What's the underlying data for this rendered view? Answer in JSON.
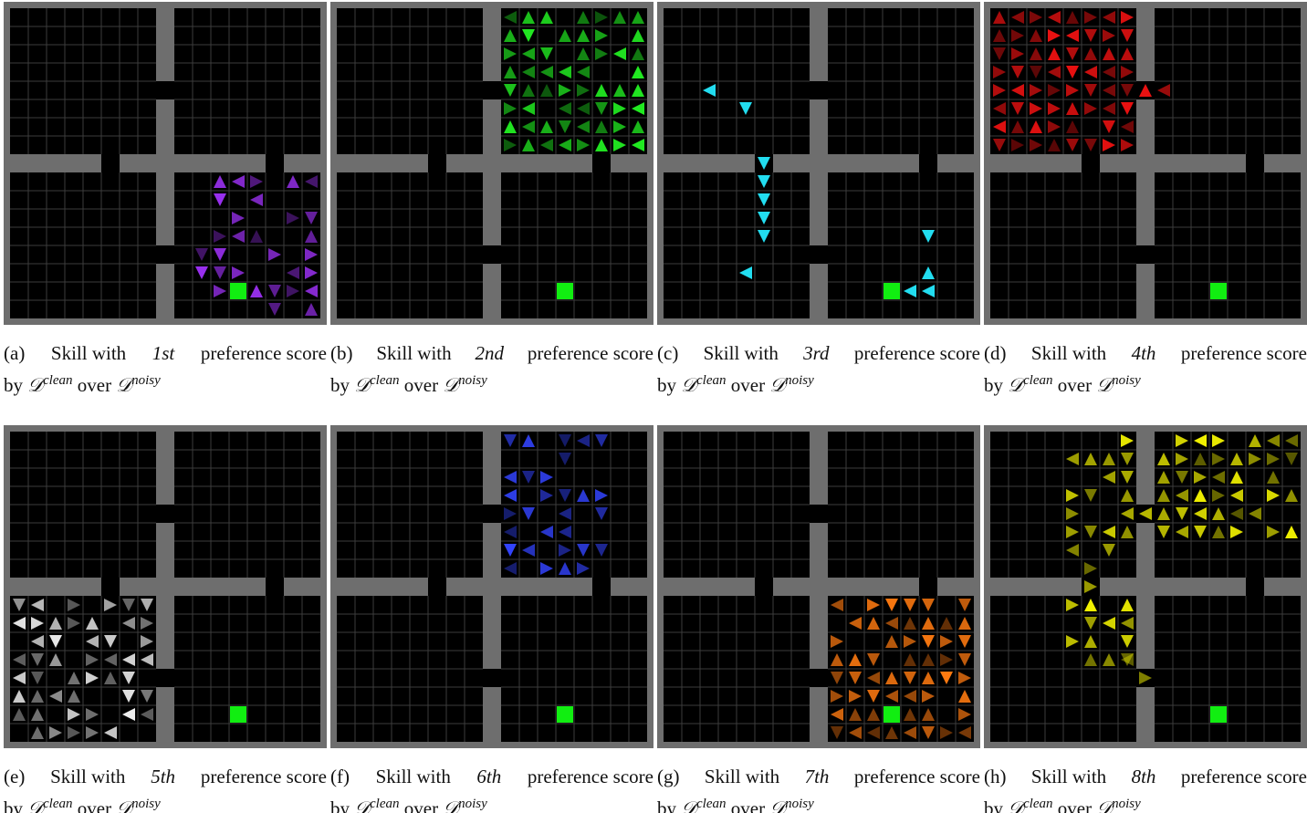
{
  "panels": [
    {
      "label": "(a)",
      "text_before": "Skill with",
      "ordinal": "1st",
      "text_after": "preference score",
      "by": "by",
      "symbol": "𝒟",
      "clean": "clean",
      "over": "over",
      "noisy": "noisy"
    },
    {
      "label": "(b)",
      "text_before": "Skill with",
      "ordinal": "2nd",
      "text_after": "preference score",
      "by": "by",
      "symbol": "𝒟",
      "clean": "clean",
      "over": "over",
      "noisy": "noisy"
    },
    {
      "label": "(c)",
      "text_before": "Skill with",
      "ordinal": "3rd",
      "text_after": "preference score",
      "by": "by",
      "symbol": "𝒟",
      "clean": "clean",
      "over": "over",
      "noisy": "noisy"
    },
    {
      "label": "(d)",
      "text_before": "Skill with",
      "ordinal": "4th",
      "text_after": "preference score",
      "by": "by",
      "symbol": "𝒟",
      "clean": "clean",
      "over": "over",
      "noisy": "noisy"
    },
    {
      "label": "(e)",
      "text_before": "Skill with",
      "ordinal": "5th",
      "text_after": "preference score",
      "by": "by",
      "symbol": "𝒟",
      "clean": "clean",
      "over": "over",
      "noisy": "noisy"
    },
    {
      "label": "(f)",
      "text_before": "Skill with",
      "ordinal": "6th",
      "text_after": "preference score",
      "by": "by",
      "symbol": "𝒟",
      "clean": "clean",
      "over": "over",
      "noisy": "noisy"
    },
    {
      "label": "(g)",
      "text_before": "Skill with",
      "ordinal": "7th",
      "text_after": "preference score",
      "by": "by",
      "symbol": "𝒟",
      "clean": "clean",
      "over": "over",
      "noisy": "noisy"
    },
    {
      "label": "(h)",
      "text_before": "Skill with",
      "ordinal": "8th",
      "text_after": "preference score",
      "by": "by",
      "symbol": "𝒟",
      "clean": "clean",
      "over": "over",
      "noisy": "noisy"
    }
  ]
}
